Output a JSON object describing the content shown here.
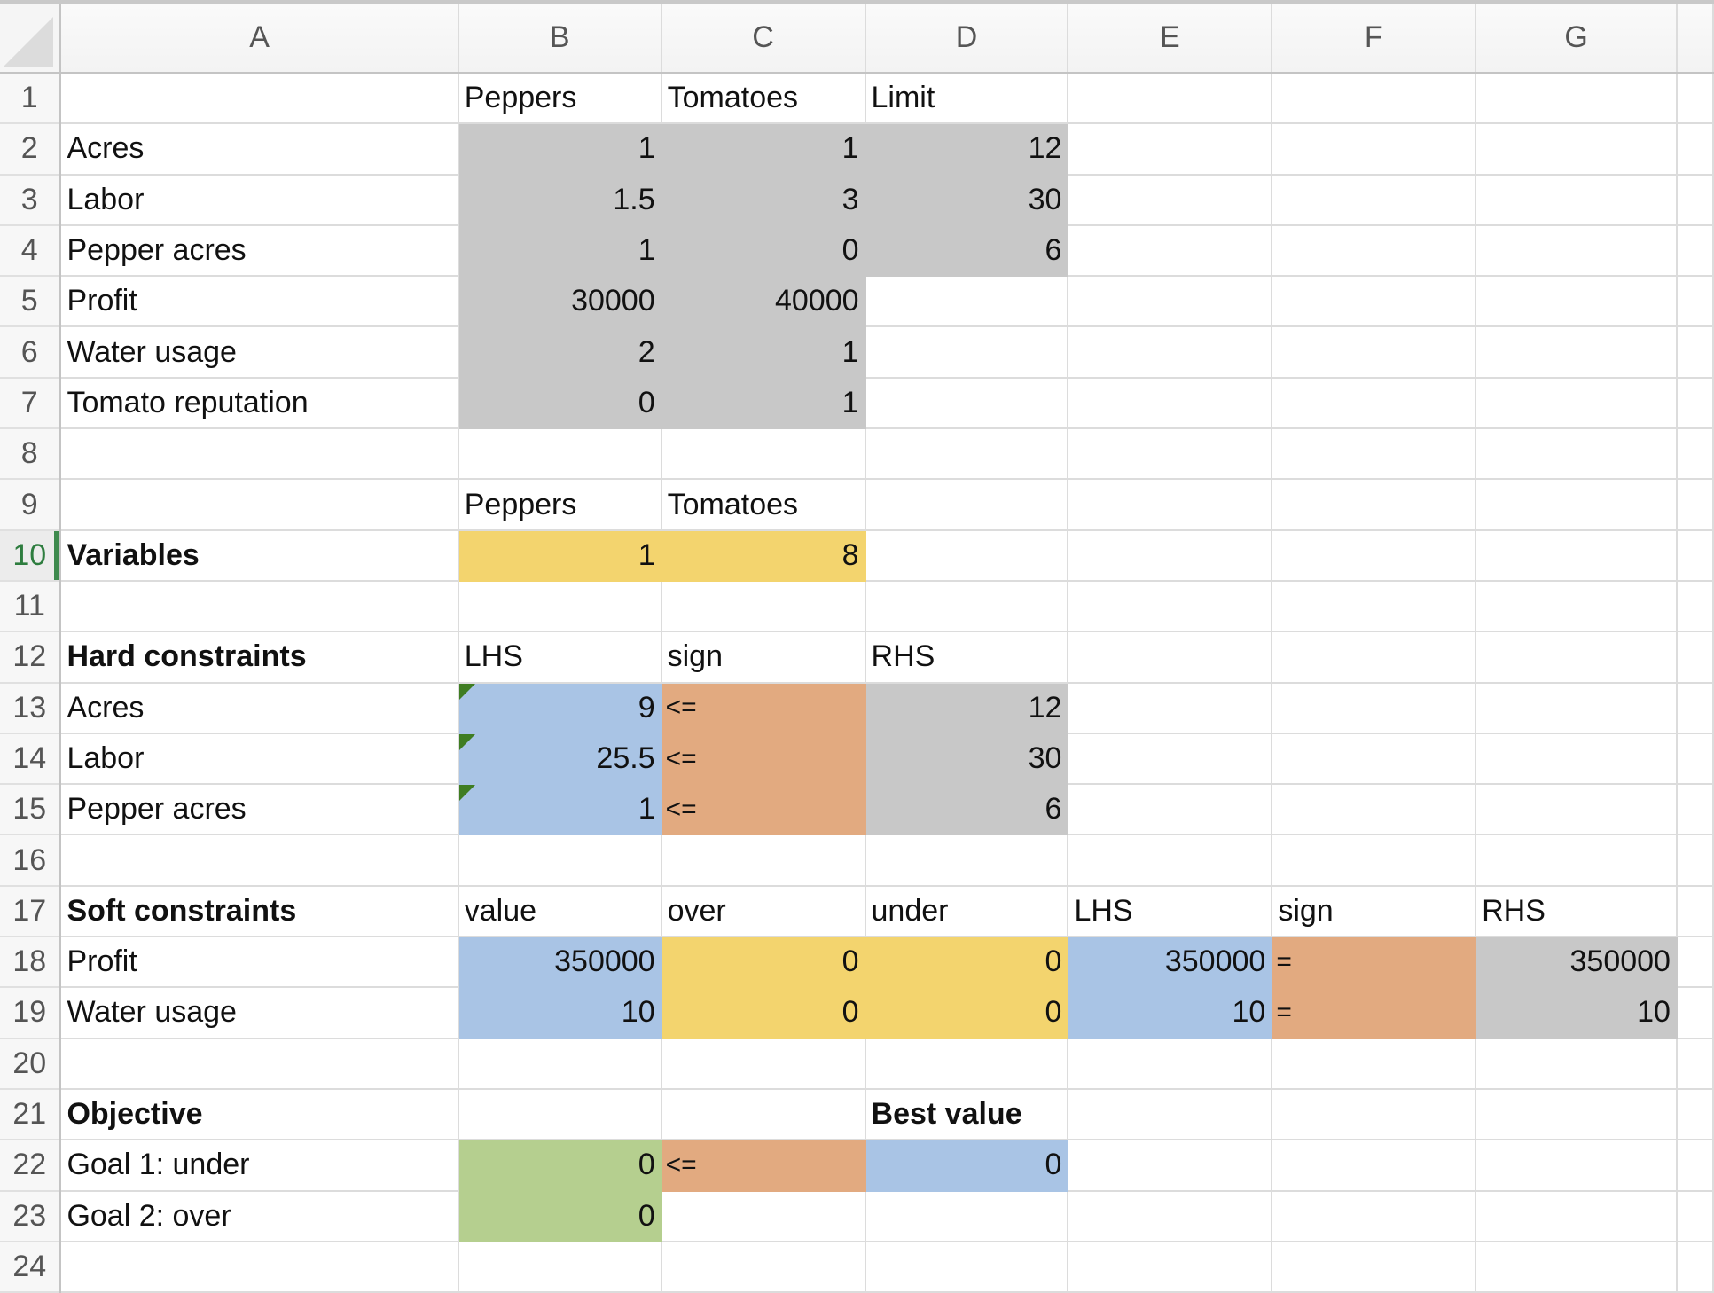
{
  "columns": [
    "A",
    "B",
    "C",
    "D",
    "E",
    "F",
    "G",
    ""
  ],
  "active_row": 10,
  "colors": {
    "gray": "#c8c8c8",
    "yellow": "#f3d46e",
    "blue": "#a9c4e5",
    "orange": "#e2aa80",
    "green": "#b5cf8f",
    "active_row_header": "#2e7d3f"
  },
  "rows": [
    {
      "n": "1",
      "cells": [
        "",
        "Peppers",
        "Tomatoes",
        "Limit",
        "",
        "",
        "",
        ""
      ]
    },
    {
      "n": "2",
      "cells": [
        "Acres",
        "1",
        "1",
        "12",
        "",
        "",
        "",
        ""
      ]
    },
    {
      "n": "3",
      "cells": [
        "Labor",
        "1.5",
        "3",
        "30",
        "",
        "",
        "",
        ""
      ]
    },
    {
      "n": "4",
      "cells": [
        "Pepper acres",
        "1",
        "0",
        "6",
        "",
        "",
        "",
        ""
      ]
    },
    {
      "n": "5",
      "cells": [
        "Profit",
        "30000",
        "40000",
        "",
        "",
        "",
        "",
        ""
      ]
    },
    {
      "n": "6",
      "cells": [
        "Water usage",
        "2",
        "1",
        "",
        "",
        "",
        "",
        ""
      ]
    },
    {
      "n": "7",
      "cells": [
        "Tomato reputation",
        "0",
        "1",
        "",
        "",
        "",
        "",
        ""
      ]
    },
    {
      "n": "8",
      "cells": [
        "",
        "",
        "",
        "",
        "",
        "",
        "",
        ""
      ]
    },
    {
      "n": "9",
      "cells": [
        "",
        "Peppers",
        "Tomatoes",
        "",
        "",
        "",
        "",
        ""
      ]
    },
    {
      "n": "10",
      "cells": [
        "Variables",
        "1",
        "8",
        "",
        "",
        "",
        "",
        ""
      ]
    },
    {
      "n": "11",
      "cells": [
        "",
        "",
        "",
        "",
        "",
        "",
        "",
        ""
      ]
    },
    {
      "n": "12",
      "cells": [
        "Hard constraints",
        "LHS",
        "sign",
        "RHS",
        "",
        "",
        "",
        ""
      ]
    },
    {
      "n": "13",
      "cells": [
        "Acres",
        "9",
        "<=",
        "12",
        "",
        "",
        "",
        ""
      ]
    },
    {
      "n": "14",
      "cells": [
        "Labor",
        "25.5",
        "<=",
        "30",
        "",
        "",
        "",
        ""
      ]
    },
    {
      "n": "15",
      "cells": [
        "Pepper acres",
        "1",
        "<=",
        "6",
        "",
        "",
        "",
        ""
      ]
    },
    {
      "n": "16",
      "cells": [
        "",
        "",
        "",
        "",
        "",
        "",
        "",
        ""
      ]
    },
    {
      "n": "17",
      "cells": [
        "Soft constraints",
        "value",
        "over",
        "under",
        "LHS",
        "sign",
        "RHS",
        ""
      ]
    },
    {
      "n": "18",
      "cells": [
        "Profit",
        "350000",
        "0",
        "0",
        "350000",
        "=",
        "350000",
        ""
      ]
    },
    {
      "n": "19",
      "cells": [
        "Water usage",
        "10",
        "0",
        "0",
        "10",
        "=",
        "10",
        ""
      ]
    },
    {
      "n": "20",
      "cells": [
        "",
        "",
        "",
        "",
        "",
        "",
        "",
        ""
      ]
    },
    {
      "n": "21",
      "cells": [
        "Objective",
        "",
        "",
        "Best value",
        "",
        "",
        "",
        ""
      ]
    },
    {
      "n": "22",
      "cells": [
        "Goal 1: under",
        "0",
        "<=",
        "0",
        "",
        "",
        "",
        ""
      ]
    },
    {
      "n": "23",
      "cells": [
        "Goal 2: over",
        "0",
        "",
        "",
        "",
        "",
        "",
        ""
      ]
    },
    {
      "n": "24",
      "cells": [
        "",
        "",
        "",
        "",
        "",
        "",
        "",
        ""
      ]
    }
  ]
}
